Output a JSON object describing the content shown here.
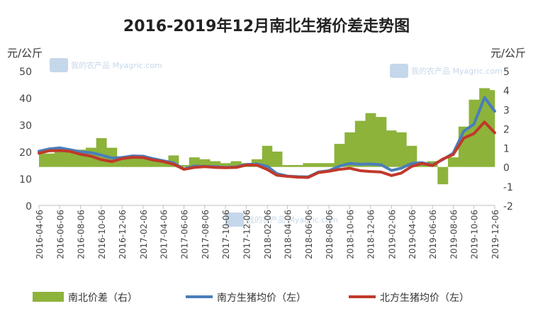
{
  "chart_data": {
    "type": "line",
    "title": "2016-2019年12月南北生猪价差走势图",
    "left_unit": "元/公斤",
    "right_unit": "元/公斤",
    "watermark": "我的农产品 Myagric.com",
    "y_left": {
      "min": 0,
      "max": 50,
      "ticks": [
        0,
        10,
        20,
        30,
        40,
        50
      ]
    },
    "y_right": {
      "min": -2,
      "max": 5,
      "ticks": [
        -2,
        -1,
        0,
        1,
        2,
        3,
        4,
        5
      ]
    },
    "x_ticks": [
      "2016-04-06",
      "2016-06-06",
      "2016-08-06",
      "2016-10-06",
      "2016-12-06",
      "2017-02-06",
      "2017-04-06",
      "2017-06-06",
      "2017-08-06",
      "2017-10-06",
      "2017-12-06",
      "2018-02-06",
      "2018-04-06",
      "2018-06-06",
      "2018-08-06",
      "2018-10-06",
      "2018-12-06",
      "2019-02-06",
      "2019-04-06",
      "2019-06-06",
      "2019-08-06",
      "2019-10-06",
      "2019-12-06"
    ],
    "x": [
      "2016-04-06",
      "2016-05-06",
      "2016-06-06",
      "2016-07-06",
      "2016-08-06",
      "2016-09-06",
      "2016-10-06",
      "2016-11-06",
      "2016-12-06",
      "2017-01-06",
      "2017-02-06",
      "2017-03-06",
      "2017-04-06",
      "2017-05-06",
      "2017-06-06",
      "2017-07-06",
      "2017-08-06",
      "2017-09-06",
      "2017-10-06",
      "2017-11-06",
      "2017-12-06",
      "2018-01-06",
      "2018-02-06",
      "2018-03-06",
      "2018-04-06",
      "2018-05-06",
      "2018-06-06",
      "2018-07-06",
      "2018-08-06",
      "2018-09-06",
      "2018-10-06",
      "2018-11-06",
      "2018-12-06",
      "2019-01-06",
      "2019-02-06",
      "2019-03-06",
      "2019-04-06",
      "2019-05-06",
      "2019-06-06",
      "2019-07-06",
      "2019-08-06",
      "2019-09-06",
      "2019-10-06",
      "2019-11-06",
      "2019-12-06"
    ],
    "series": [
      {
        "name": "南北价差（右）",
        "axis": "right",
        "style": "area",
        "color": "#8DB33B",
        "values": [
          0.9,
          0.7,
          1.0,
          0.8,
          0.9,
          1.0,
          1.5,
          1.0,
          0.5,
          0.6,
          0.5,
          0.4,
          0.3,
          0.6,
          0.1,
          0.5,
          0.4,
          0.3,
          0.2,
          0.3,
          0.2,
          0.4,
          1.1,
          0.8,
          0.1,
          0.1,
          0.2,
          0.2,
          0.2,
          1.2,
          1.8,
          2.4,
          2.8,
          2.6,
          1.9,
          1.8,
          1.1,
          0.2,
          0.3,
          -0.9,
          0.5,
          2.1,
          3.5,
          4.1,
          4.0
        ]
      },
      {
        "name": "南方生猪均价（左）",
        "axis": "left",
        "style": "line",
        "color": "#4A7EBB",
        "values": [
          20.1,
          21.0,
          21.4,
          20.7,
          19.9,
          19.6,
          18.7,
          17.6,
          17.8,
          18.4,
          18.3,
          17.4,
          16.6,
          15.8,
          13.5,
          14.6,
          14.5,
          14.4,
          14.1,
          14.3,
          15.2,
          15.4,
          14.5,
          11.8,
          10.9,
          10.7,
          10.6,
          12.4,
          12.9,
          14.6,
          15.6,
          15.3,
          15.4,
          15.1,
          13.0,
          13.8,
          15.6,
          15.9,
          15.0,
          17.0,
          19.4,
          27.6,
          30.2,
          40.1,
          35.0
        ]
      },
      {
        "name": "北方生猪均价（左）",
        "axis": "left",
        "style": "line",
        "color": "#C0392B",
        "values": [
          19.4,
          20.3,
          20.4,
          20.1,
          19.0,
          18.3,
          17.0,
          16.3,
          17.4,
          17.9,
          17.8,
          16.9,
          16.3,
          15.3,
          13.4,
          14.1,
          14.4,
          14.1,
          14.0,
          14.1,
          15.0,
          15.0,
          13.3,
          11.2,
          10.8,
          10.5,
          10.4,
          12.2,
          12.7,
          13.4,
          13.8,
          12.9,
          12.6,
          12.4,
          11.1,
          12.0,
          14.5,
          15.6,
          14.8,
          17.2,
          18.9,
          25.0,
          26.7,
          31.0,
          27.0
        ]
      }
    ]
  }
}
